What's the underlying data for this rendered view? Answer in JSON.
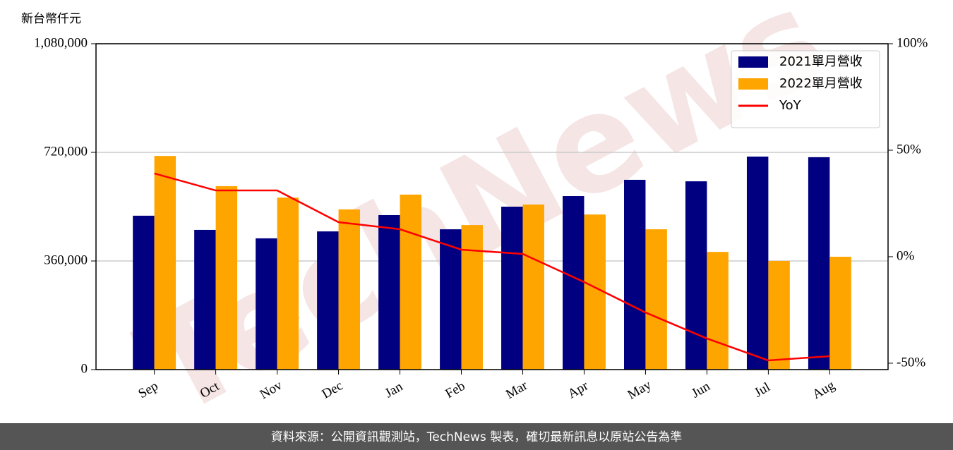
{
  "chart_data": {
    "type": "bar",
    "y_axis_label": "新台幣仟元",
    "watermark": "TechNews",
    "footer": "資料來源：公開資訊觀測站，TechNews 製表，確切最新訊息以原站公告為準",
    "categories": [
      "Sep",
      "Oct",
      "Nov",
      "Dec",
      "Jan",
      "Feb",
      "Mar",
      "Apr",
      "May",
      "Jun",
      "Jul",
      "Aug"
    ],
    "series": [
      {
        "name": "2021單月營收",
        "color": "#000080",
        "values": [
          510000,
          463000,
          435000,
          458000,
          512000,
          465000,
          540000,
          575000,
          629000,
          624000,
          706000,
          704000
        ]
      },
      {
        "name": "2022單月營收",
        "color": "#ffa500",
        "values": [
          708000,
          608000,
          570000,
          531000,
          580000,
          479000,
          547000,
          514000,
          465000,
          390000,
          360000,
          374000
        ]
      },
      {
        "name": "YoY",
        "type": "line",
        "axis": "y2",
        "color": "#ff0000",
        "values": [
          39.1,
          31.1,
          31.1,
          16.2,
          12.9,
          3.3,
          1.3,
          -11.9,
          -26.2,
          -38.4,
          -48.7,
          -46.7
        ]
      }
    ],
    "ylim": [
      0,
      1080000
    ],
    "yticks": [
      0,
      {
        "value": 360000,
        "label": "360,000"
      },
      {
        "value": 720000,
        "label": "720,000"
      },
      {
        "value": 1080000,
        "label": "1,080,000"
      }
    ],
    "y2lim": [
      -53,
      100
    ],
    "y2ticks": [
      {
        "value": -50,
        "label": "-50%"
      },
      {
        "value": 0,
        "label": "0%"
      },
      {
        "value": 50,
        "label": "50%"
      },
      {
        "value": 100,
        "label": "100%"
      }
    ],
    "grid": true,
    "legend": "upper right"
  }
}
